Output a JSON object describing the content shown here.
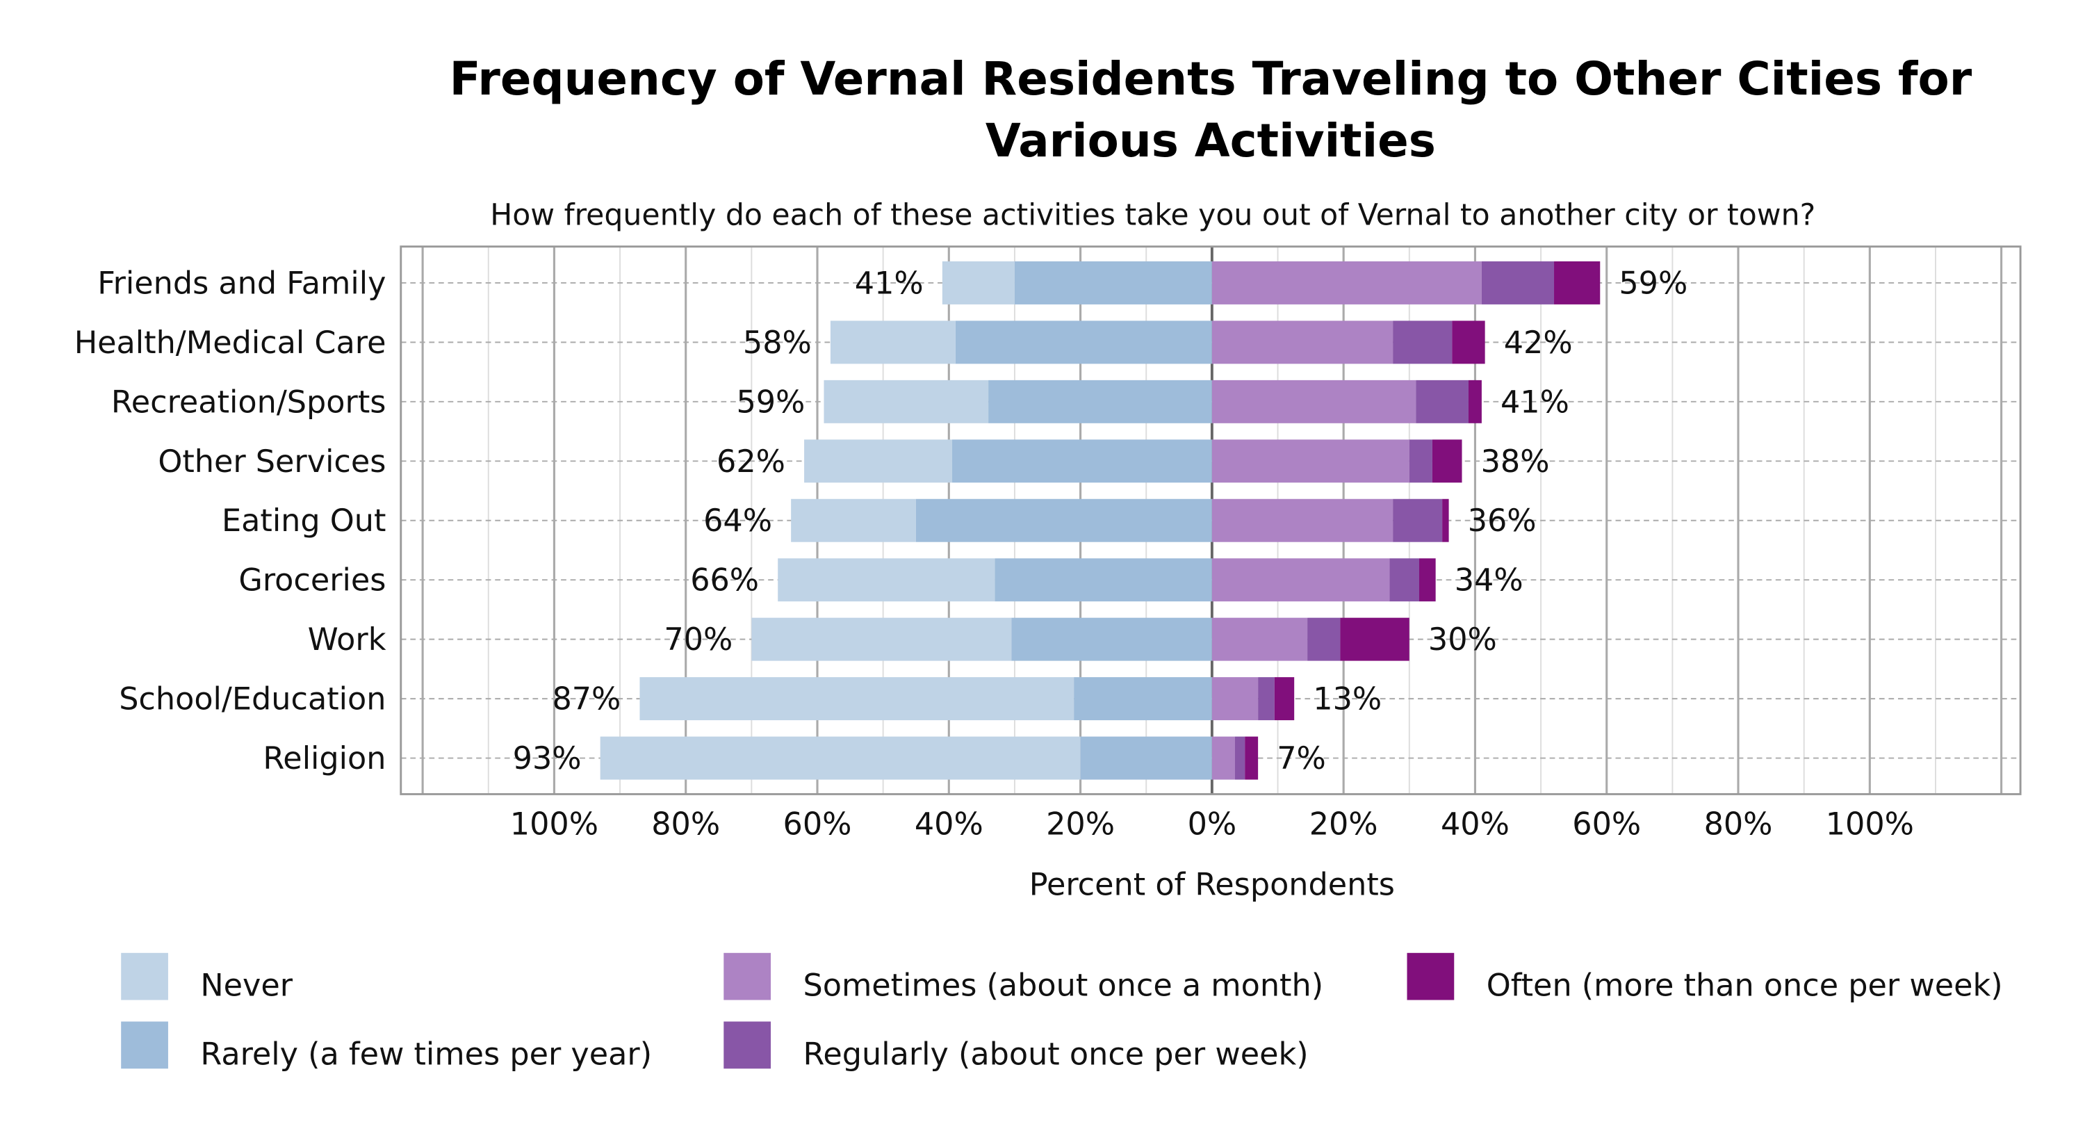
{
  "chart_data": {
    "type": "bar",
    "orientation": "horizontal-diverging-stacked",
    "title": "Frequency of Vernal Residents Traveling to Other Cities for Various Activities",
    "subtitle": "How frequently do each of these activities take you out of Vernal to another city or town?",
    "xlabel": "Percent of Respondents",
    "xlim": [
      -123,
      123
    ],
    "xticks": [
      -100,
      -80,
      -60,
      -40,
      -20,
      0,
      20,
      40,
      60,
      80,
      100
    ],
    "xtick_labels": [
      "100%",
      "80%",
      "60%",
      "40%",
      "20%",
      "0%",
      "20%",
      "40%",
      "60%",
      "80%",
      "100%"
    ],
    "grid": true,
    "legend_position": "bottom",
    "categories": [
      "Friends and Family",
      "Health/Medical Care",
      "Recreation/Sports",
      "Other Services",
      "Eating Out",
      "Groceries",
      "Work",
      "School/Education",
      "Religion"
    ],
    "series": [
      {
        "name": "Never",
        "side": "negative",
        "color": "#bfd3e6",
        "values": [
          11,
          19,
          25,
          22.5,
          19,
          33,
          39.5,
          66,
          73
        ]
      },
      {
        "name": "Rarely (a few times per year)",
        "side": "negative",
        "color": "#9ebcda",
        "values": [
          30,
          39,
          34,
          39.5,
          45,
          33,
          30.5,
          21,
          20
        ]
      },
      {
        "name": "Sometimes (about once a month)",
        "side": "positive",
        "color": "#ad83c4",
        "values": [
          41,
          27.5,
          31,
          30,
          27.5,
          27,
          14.5,
          7,
          3.5
        ]
      },
      {
        "name": "Regularly (about once per week)",
        "side": "positive",
        "color": "#8856a7",
        "values": [
          11,
          9,
          8,
          3.5,
          7.5,
          4.5,
          5,
          2.5,
          1.5
        ]
      },
      {
        "name": "Often (more than once per week)",
        "side": "positive",
        "color": "#810f7c",
        "values": [
          7,
          5,
          2,
          4.5,
          1,
          2.5,
          10.5,
          3,
          2
        ]
      }
    ],
    "negative_totals": [
      "41%",
      "58%",
      "59%",
      "62%",
      "64%",
      "66%",
      "70%",
      "87%",
      "93%"
    ],
    "positive_totals": [
      "59%",
      "42%",
      "41%",
      "38%",
      "36%",
      "34%",
      "30%",
      "13%",
      "7%"
    ],
    "legend_order": [
      0,
      2,
      4,
      1,
      3
    ]
  }
}
